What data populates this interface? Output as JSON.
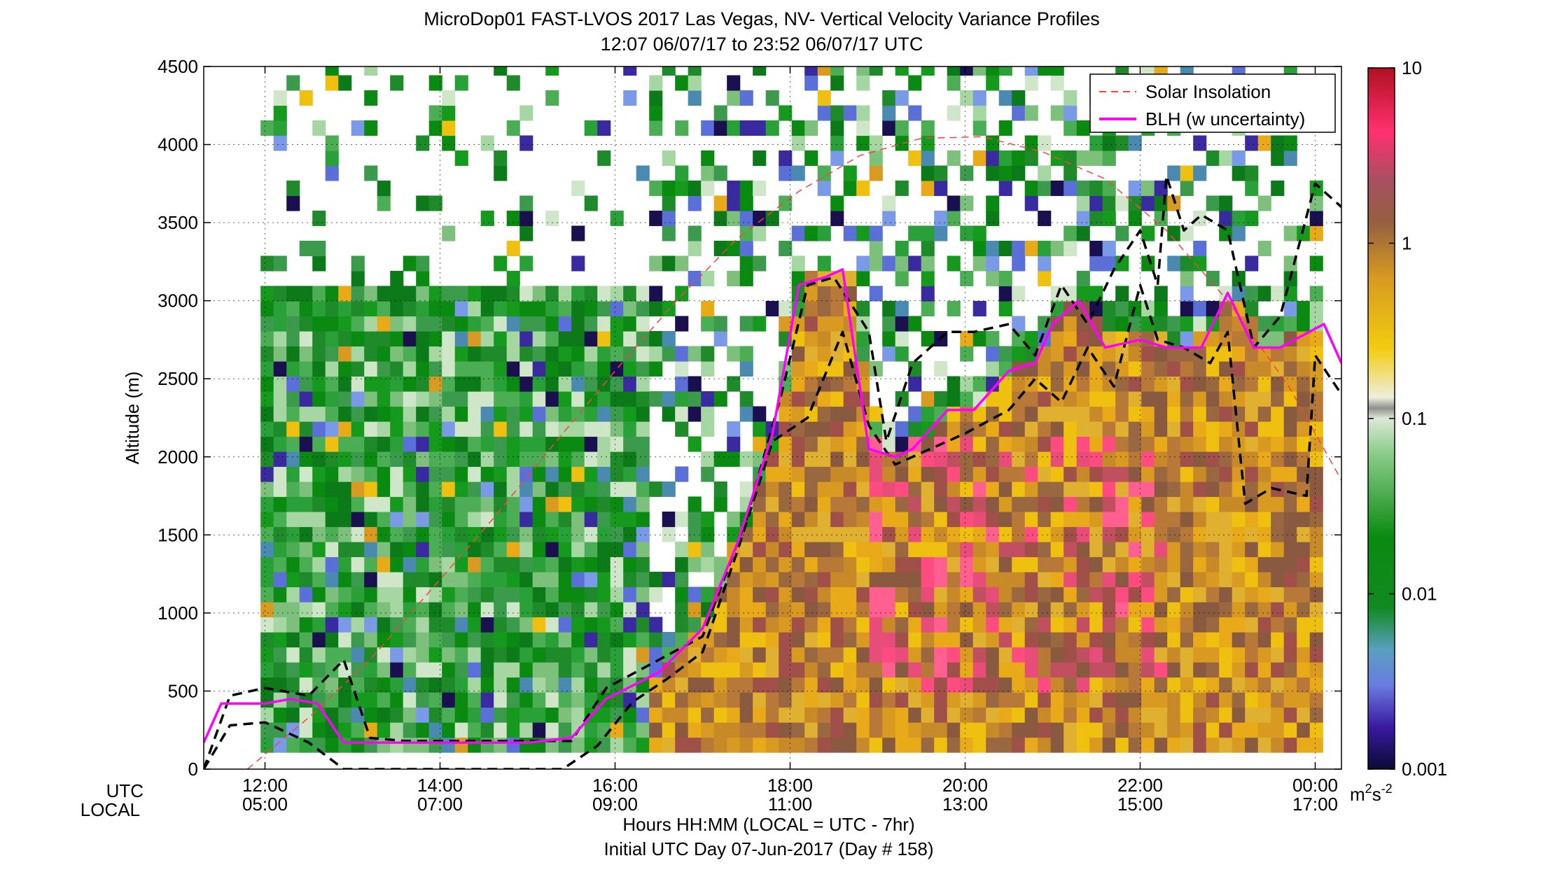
{
  "title_line1": "MicroDop01 FAST-LVOS 2017 Las Vegas, NV- Vertical Velocity Variance Profiles",
  "title_line2": "12:07 06/07/17 to 23:52 06/07/17  UTC",
  "chart_data": {
    "type": "heatmap",
    "ylabel": "Altitude (m)",
    "y_ticks": [
      "0",
      "500",
      "1000",
      "1500",
      "2000",
      "2500",
      "3000",
      "3500",
      "4000",
      "4500"
    ],
    "ylim": [
      0,
      4500
    ],
    "xlim_hours_utc": [
      11.3,
      24.3
    ],
    "row_labels": {
      "utc": "UTC",
      "local": "LOCAL"
    },
    "x_ticks": [
      {
        "hour": 12,
        "utc": "12:00",
        "local": "05:00"
      },
      {
        "hour": 14,
        "utc": "14:00",
        "local": "07:00"
      },
      {
        "hour": 16,
        "utc": "16:00",
        "local": "09:00"
      },
      {
        "hour": 18,
        "utc": "18:00",
        "local": "11:00"
      },
      {
        "hour": 20,
        "utc": "20:00",
        "local": "13:00"
      },
      {
        "hour": 22,
        "utc": "22:00",
        "local": "15:00"
      },
      {
        "hour": 24,
        "utc": "00:00",
        "local": "17:00"
      }
    ],
    "xlabel_line1": "Hours HH:MM  (LOCAL = UTC - 7hr)",
    "xlabel_line2": "Initial UTC Day 07-Jun-2017 (Day # 158)",
    "grid": true,
    "legend_position": "top-right",
    "legend": [
      {
        "label": "Solar Insolation",
        "color": "#ff4040",
        "style": "dashed"
      },
      {
        "label": "BLH (w uncertainty)",
        "color": "#ff00ff",
        "style": "solid"
      }
    ],
    "colorbar": {
      "scale": "log",
      "ticks": [
        "10",
        "1",
        "0.1",
        "0.01",
        "0.001"
      ],
      "unit_base": "m",
      "unit_exp1": "2",
      "unit_mid": "s",
      "unit_exp2": "-2"
    },
    "series": [
      {
        "name": "BLH (w uncertainty)",
        "x": [
          11.3,
          11.5,
          12.0,
          12.3,
          12.6,
          12.9,
          13.3,
          14.0,
          14.5,
          15.0,
          15.5,
          15.9,
          16.5,
          17.0,
          17.4,
          17.8,
          18.1,
          18.4,
          18.6,
          18.9,
          19.2,
          19.4,
          19.8,
          20.1,
          20.5,
          20.8,
          21.0,
          21.3,
          21.6,
          22.0,
          22.3,
          22.7,
          23.0,
          23.3,
          23.6,
          24.1,
          24.3
        ],
        "y": [
          170,
          420,
          420,
          450,
          420,
          170,
          170,
          170,
          170,
          170,
          200,
          450,
          620,
          900,
          1450,
          2150,
          3100,
          3150,
          3200,
          2050,
          2000,
          2050,
          2300,
          2300,
          2550,
          2600,
          2850,
          3000,
          2700,
          2750,
          2700,
          2700,
          3050,
          2700,
          2700,
          2850,
          2600
        ]
      },
      {
        "name": "BLH upper bound",
        "x": [
          11.3,
          11.6,
          12.0,
          12.5,
          12.9,
          13.2,
          13.6,
          14.0,
          14.5,
          15.0,
          15.5,
          15.9,
          16.5,
          17.0,
          17.5,
          17.9,
          18.2,
          18.5,
          18.9,
          19.1,
          19.4,
          19.8,
          20.1,
          20.5,
          20.8,
          21.1,
          21.4,
          21.7,
          22.0,
          22.2,
          22.3,
          22.5,
          22.7,
          23.0,
          23.3,
          23.6,
          24.0,
          24.3
        ],
        "y": [
          0,
          470,
          520,
          470,
          700,
          200,
          180,
          180,
          180,
          180,
          180,
          520,
          700,
          850,
          1600,
          2400,
          3100,
          3150,
          2800,
          2100,
          2600,
          2800,
          2800,
          2850,
          2650,
          3100,
          2850,
          3200,
          3450,
          3100,
          3800,
          3450,
          3550,
          3450,
          2700,
          2900,
          3750,
          3600
        ]
      },
      {
        "name": "BLH lower bound",
        "x": [
          11.3,
          11.6,
          12.0,
          12.5,
          12.9,
          13.3,
          14.0,
          14.5,
          15.0,
          15.4,
          15.8,
          16.2,
          16.6,
          17.0,
          17.4,
          17.8,
          18.2,
          18.6,
          18.9,
          19.2,
          19.6,
          20.0,
          20.5,
          20.8,
          21.1,
          21.4,
          21.7,
          22.0,
          22.2,
          22.5,
          22.8,
          23.0,
          23.2,
          23.5,
          23.9,
          24.0,
          24.3
        ],
        "y": [
          0,
          280,
          300,
          170,
          0,
          0,
          0,
          0,
          0,
          0,
          150,
          430,
          580,
          750,
          1400,
          2100,
          2250,
          2800,
          2200,
          1950,
          2050,
          2150,
          2300,
          2500,
          2350,
          2700,
          2450,
          3100,
          2750,
          2700,
          2600,
          2800,
          1700,
          1800,
          1750,
          2650,
          2400
        ]
      },
      {
        "name": "Solar Insolation",
        "x": [
          11.8,
          12.5,
          13.2,
          13.9,
          14.6,
          15.3,
          16.0,
          16.7,
          17.4,
          18.1,
          18.8,
          19.5,
          20.2,
          20.9,
          21.6,
          22.3,
          23.0,
          23.7,
          24.3
        ],
        "y": [
          0,
          330,
          700,
          1150,
          1600,
          2080,
          2550,
          3000,
          3400,
          3700,
          3930,
          4040,
          4050,
          3950,
          3780,
          3450,
          3000,
          2450,
          1850
        ]
      }
    ]
  }
}
